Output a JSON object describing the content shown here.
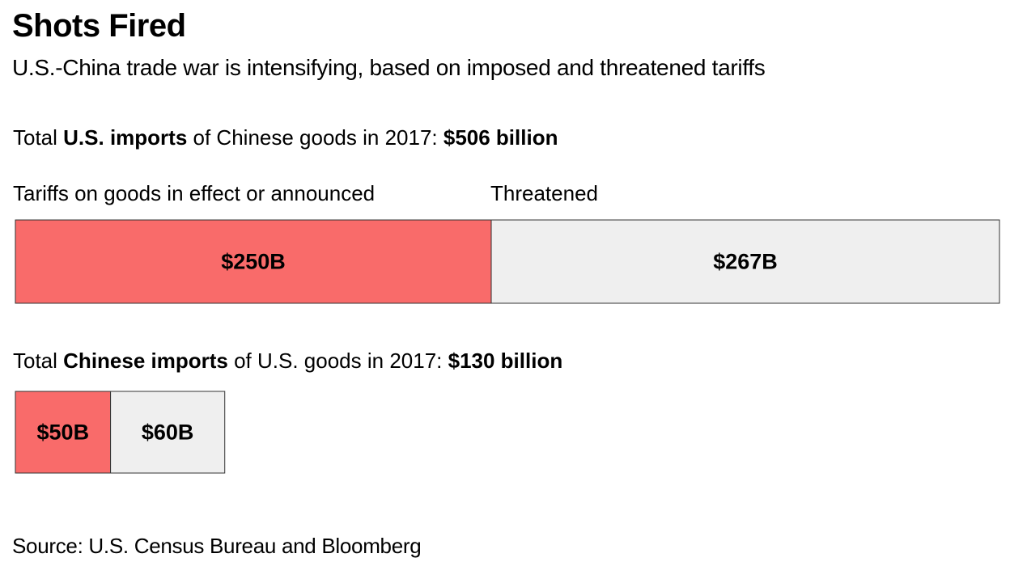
{
  "header": {
    "title": "Shots Fired",
    "subtitle": "U.S.-China trade war is intensifying, based on imposed and threatened tariffs"
  },
  "section1": {
    "prefix": "Total ",
    "bold_label": "U.S. imports",
    "middle": " of Chinese goods in 2017: ",
    "total": "$506 billion"
  },
  "column_labels": {
    "left": "Tariffs on goods in effect or announced",
    "right": "Threatened"
  },
  "section2": {
    "prefix": "Total ",
    "bold_label": "Chinese imports",
    "middle": " of U.S. goods in 2017: ",
    "total": "$130 billion"
  },
  "source": "Source: U.S. Census Bureau and Bloomberg",
  "colors": {
    "in_effect": "#f96b6a",
    "threatened": "#efefef",
    "outline": "#333333"
  },
  "chart_data": [
    {
      "type": "bar",
      "orientation": "horizontal-stacked",
      "unit": "billion USD",
      "series": [
        {
          "name": "Tariffs on goods in effect or announced",
          "value": 250,
          "label": "$250B"
        },
        {
          "name": "Threatened",
          "value": 267,
          "label": "$267B"
        }
      ]
    },
    {
      "type": "bar",
      "orientation": "horizontal-stacked",
      "unit": "billion USD",
      "series": [
        {
          "name": "Tariffs on goods in effect or announced",
          "value": 50,
          "label": "$50B"
        },
        {
          "name": "Threatened",
          "value": 60,
          "label": "$60B"
        }
      ]
    }
  ]
}
